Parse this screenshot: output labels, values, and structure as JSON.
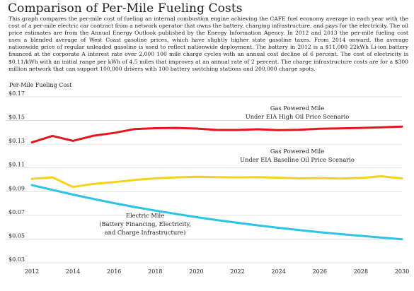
{
  "header": {
    "title": "Comparison of Per-Mile Fueling Costs",
    "description": "This graph compares the per-mile cost of fueling an internal combustion engine achieving the CAFE fuel economy average in each year with the cost of a per-mile electric car contract from a network operator that owns the battery, charging infrastructure, and pays for the electricity. The oil price estimates are from the Annual Energy Outlook published by the Energy Information Agency. In 2012 and 2013 the per-mile fueling cost uses a blended average of West Coast gasoline prices, which have slightly higher state gasoline taxes. From 2014 onward, the average nationwide price of regular unleaded gasoline is used to reflect nationwide deployment. The battery in 2012 is a $11,000 22kWh Li-ion battery financed at the corporate A interest rate over 2,000 100 mile charge cycles with an annual cost decline of 6 percent. The cost of electricity is $0.11/kWh with an initial range per kWh of 4.5 miles that improves at an annual rate of 2 percent. The charge infrastructure costs are for a $300 million network that can support 100,000 drivers with 100 battery switching stations and 200,000 charge spots."
  },
  "chart_data": {
    "type": "line",
    "title": "Comparison of Per-Mile Fueling Costs",
    "ylabel": "Per-Mile Fueling Cost",
    "xlabel": "",
    "xlim": [
      2012,
      2030
    ],
    "ylim": [
      0.03,
      0.17
    ],
    "x_ticks": [
      "2012",
      "2014",
      "2016",
      "2018",
      "2020",
      "2022",
      "2024",
      "2026",
      "2028",
      "2030"
    ],
    "y_ticks": [
      "$0.03",
      "$0.05",
      "$0.07",
      "$0.09",
      "$0.11",
      "$0.13",
      "$0.15",
      "$0.17"
    ],
    "x": [
      2012,
      2013,
      2014,
      2015,
      2016,
      2017,
      2018,
      2019,
      2020,
      2021,
      2022,
      2023,
      2024,
      2025,
      2026,
      2027,
      2028,
      2029,
      2030
    ],
    "series": [
      {
        "name": "Gas Powered Mile Under EIA High Oil Price Scenario",
        "color": "#e8141c",
        "label_lines": [
          "Gas Powered Mile",
          "Under EIA High Oil Price Scenario"
        ],
        "values": [
          0.1315,
          0.137,
          0.1328,
          0.1372,
          0.1395,
          0.1428,
          0.1435,
          0.1437,
          0.1432,
          0.142,
          0.142,
          0.1426,
          0.1418,
          0.1422,
          0.143,
          0.1433,
          0.1437,
          0.1442,
          0.1448
        ]
      },
      {
        "name": "Gas Powered Mile Under EIA Baseline Oil Price Scenario",
        "color": "#f6d21c",
        "label_lines": [
          "Gas Powered Mile",
          "Under EIA Baseline Oil Price Scenario"
        ],
        "values": [
          0.1007,
          0.102,
          0.094,
          0.0965,
          0.098,
          0.0998,
          0.1012,
          0.102,
          0.1025,
          0.1022,
          0.102,
          0.1022,
          0.1017,
          0.1012,
          0.1014,
          0.101,
          0.1015,
          0.103,
          0.1012
        ]
      },
      {
        "name": "Electric Mile (Battery Financing, Electricity, and Charge Infrastructure)",
        "color": "#29c4e6",
        "label_lines": [
          "Electric Mile",
          "(Battery Financing, Electricity,",
          "and Charge Infrastructure)"
        ],
        "values": [
          0.0955,
          0.0915,
          0.0875,
          0.0838,
          0.0803,
          0.077,
          0.074,
          0.0712,
          0.0685,
          0.066,
          0.0637,
          0.0615,
          0.0595,
          0.0576,
          0.0558,
          0.0542,
          0.0527,
          0.0512,
          0.0498
        ]
      }
    ],
    "grid": true
  }
}
